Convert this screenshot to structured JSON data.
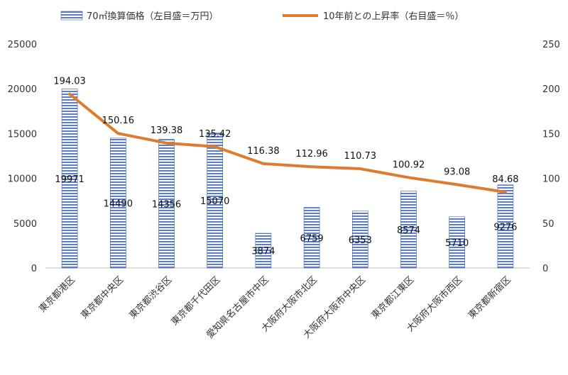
{
  "chart_data": {
    "type": "bar+line",
    "categories": [
      "東京都港区",
      "東京都中央区",
      "東京都渋谷区",
      "東京都千代田区",
      "愛知県名古屋市中区",
      "大阪府大阪市北区",
      "大阪府大阪市中央区",
      "東京都江東区",
      "大阪府大阪市西区",
      "東京都新宿区"
    ],
    "series": [
      {
        "name": "70㎡換算価格（左目盛＝万円）",
        "type": "bar",
        "axis": "left",
        "values": [
          19971,
          14490,
          14356,
          15070,
          3874,
          6759,
          6353,
          8574,
          5710,
          9276
        ]
      },
      {
        "name": "10年前との上昇率（右目盛＝％）",
        "type": "line",
        "axis": "right",
        "values": [
          194.03,
          150.16,
          139.38,
          135.42,
          116.38,
          112.96,
          110.73,
          100.92,
          93.08,
          84.68
        ]
      }
    ],
    "left_axis": {
      "ylim": [
        0,
        25000
      ],
      "ticks": [
        "0",
        "5000",
        "10000",
        "15000",
        "20000",
        "25000"
      ]
    },
    "right_axis": {
      "ylim": [
        0,
        250
      ],
      "ticks": [
        "0",
        "50",
        "100",
        "150",
        "200",
        "250"
      ]
    },
    "legend": "top",
    "grid": false,
    "colors": {
      "bar_fill": "#5b7dc8",
      "bar_stripe": "#ffffff",
      "line": "#e07b2e",
      "axis": "#bfbfbf"
    }
  }
}
